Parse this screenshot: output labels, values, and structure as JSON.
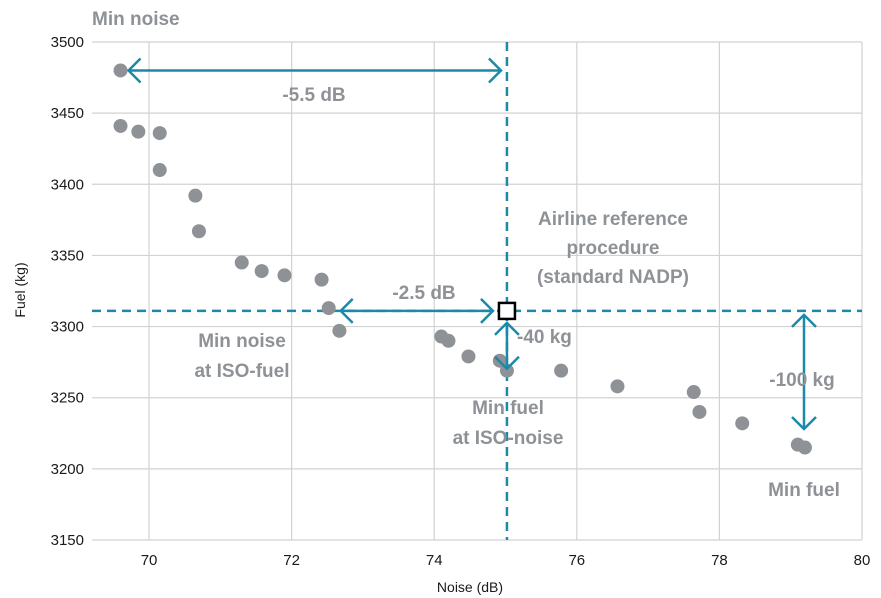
{
  "colors": {
    "points": "#8e9296",
    "reference_line": "#1a8aa8",
    "arrow": "#1a8aa8",
    "grid": "#d2d2d2",
    "annotation_text": "#8e9296"
  },
  "chart_data": {
    "type": "scatter",
    "xlabel": "Noise (dB)",
    "ylabel": "Fuel (kg)",
    "xlim": [
      69.2,
      80
    ],
    "ylim": [
      3150,
      3500
    ],
    "x_ticks": [
      70,
      72,
      74,
      76,
      78,
      80
    ],
    "y_ticks": [
      3150,
      3200,
      3250,
      3300,
      3350,
      3400,
      3450,
      3500
    ],
    "grid": true,
    "series": [
      {
        "points": [
          {
            "x": 69.6,
            "y": 3480
          },
          {
            "x": 69.6,
            "y": 3441
          },
          {
            "x": 69.85,
            "y": 3437
          },
          {
            "x": 70.15,
            "y": 3436
          },
          {
            "x": 70.15,
            "y": 3410
          },
          {
            "x": 70.65,
            "y": 3392
          },
          {
            "x": 70.7,
            "y": 3367
          },
          {
            "x": 71.3,
            "y": 3345
          },
          {
            "x": 71.58,
            "y": 3339
          },
          {
            "x": 71.9,
            "y": 3336
          },
          {
            "x": 72.42,
            "y": 3333
          },
          {
            "x": 72.52,
            "y": 3313
          },
          {
            "x": 72.67,
            "y": 3297
          },
          {
            "x": 74.1,
            "y": 3293
          },
          {
            "x": 74.2,
            "y": 3290
          },
          {
            "x": 74.48,
            "y": 3279
          },
          {
            "x": 74.92,
            "y": 3276
          },
          {
            "x": 75.02,
            "y": 3269
          },
          {
            "x": 75.78,
            "y": 3269
          },
          {
            "x": 76.57,
            "y": 3258
          },
          {
            "x": 77.64,
            "y": 3254
          },
          {
            "x": 77.72,
            "y": 3240
          },
          {
            "x": 78.32,
            "y": 3232
          },
          {
            "x": 79.1,
            "y": 3217
          },
          {
            "x": 79.2,
            "y": 3215
          }
        ]
      }
    ],
    "reference_point": {
      "x": 75.02,
      "y": 3311
    },
    "annotations": {
      "min_noise": "Min noise",
      "delta_noise_max": "-5.5 dB",
      "reference_line1": "Airline reference",
      "reference_line2": "procedure",
      "reference_line3": "(standard NADP)",
      "delta_noise_iso_fuel": "-2.5 dB",
      "min_noise_iso_fuel_line1": "Min noise",
      "min_noise_iso_fuel_line2": "at ISO-fuel",
      "delta_fuel_iso_noise": "-40 kg",
      "min_fuel_iso_noise_line1": "Min fuel",
      "min_fuel_iso_noise_line2": "at ISO-noise",
      "delta_fuel_max": "-100 kg",
      "min_fuel": "Min fuel"
    }
  }
}
